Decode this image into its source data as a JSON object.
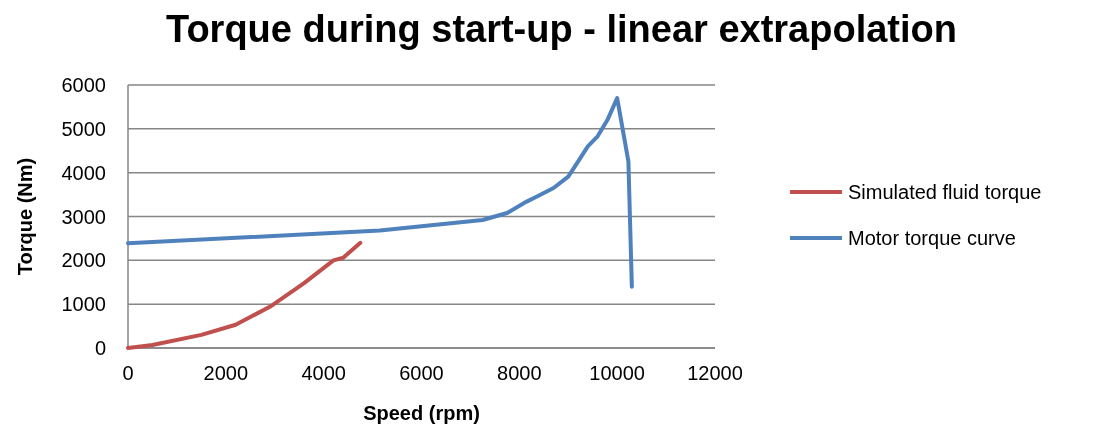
{
  "chart_data": {
    "type": "line",
    "title": "Torque during start-up - linear extrapolation",
    "xlabel": "Speed (rpm)",
    "ylabel": "Torque (Nm)",
    "xlim": [
      0,
      12000
    ],
    "xticks": [
      0,
      2000,
      4000,
      6000,
      8000,
      10000,
      12000
    ],
    "ylim": [
      0,
      6000
    ],
    "yticks": [
      0,
      1000,
      2000,
      3000,
      4000,
      5000,
      6000
    ],
    "grid": "y",
    "legend": "right",
    "series": [
      {
        "name": "Simulated fluid torque",
        "color": "#c0504d",
        "x": [
          0,
          500,
          1500,
          2200,
          2900,
          3600,
          4200,
          4400,
          4750
        ],
        "values": [
          0,
          70,
          300,
          530,
          940,
          1480,
          2000,
          2060,
          2400
        ]
      },
      {
        "name": "Motor torque curve",
        "color": "#4f81bd",
        "x": [
          0,
          5150,
          7250,
          7750,
          8150,
          8350,
          8700,
          9000,
          9200,
          9400,
          9600,
          9800,
          10000,
          10230,
          10300
        ],
        "values": [
          2390,
          2680,
          2920,
          3080,
          3340,
          3450,
          3650,
          3910,
          4250,
          4600,
          4830,
          5200,
          5700,
          4250,
          1400
        ]
      }
    ]
  }
}
